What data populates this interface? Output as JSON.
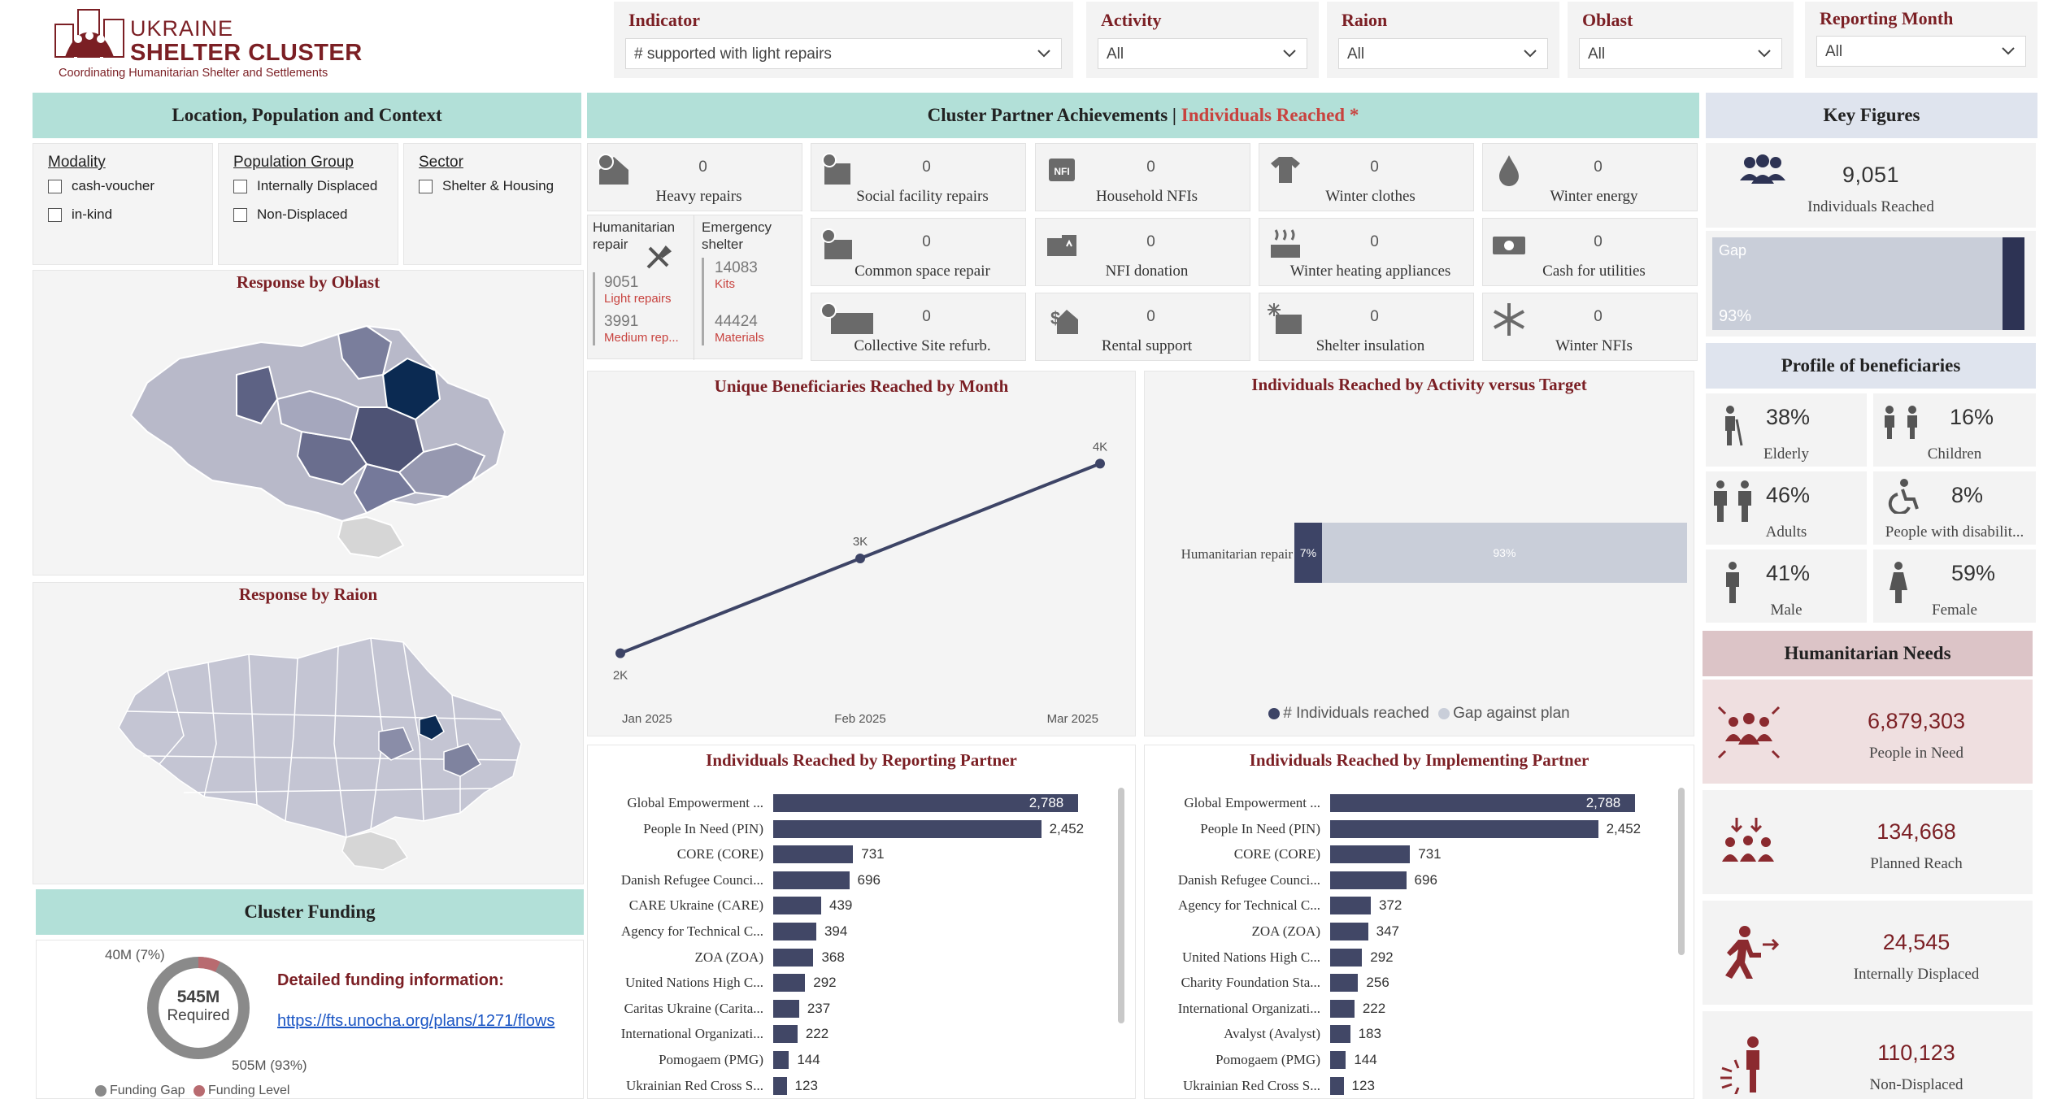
{
  "logo": {
    "line1": "UKRAINE",
    "line2": "SHELTER CLUSTER",
    "tagline": "Coordinating Humanitarian Shelter and Settlements"
  },
  "filters": [
    {
      "label": "Indicator",
      "value": "# supported with light repairs"
    },
    {
      "label": "Activity",
      "value": "All"
    },
    {
      "label": "Raion",
      "value": "All"
    },
    {
      "label": "Oblast",
      "value": "All"
    },
    {
      "label": "Reporting Month",
      "value": "All"
    }
  ],
  "left": {
    "header": "Location, Population and Context",
    "slicers": [
      {
        "title": "Modality",
        "options": [
          "cash-voucher",
          "in-kind"
        ]
      },
      {
        "title": "Population Group",
        "options": [
          "Internally Displaced",
          "Non-Displaced"
        ]
      },
      {
        "title": "Sector",
        "options": [
          "Shelter & Housing"
        ]
      }
    ],
    "map1_title": "Response by Oblast",
    "map2_title": "Response by Raion",
    "funding": {
      "header": "Cluster Funding",
      "donut_center_value": "545M",
      "donut_center_label": "Required",
      "label_level": "40M (7%)",
      "label_gap": "505M (93%)",
      "info_title": "Detailed funding information:",
      "link": "https://fts.unocha.org/plans/1271/flows",
      "legend_gap": "Funding Gap",
      "legend_level": "Funding Level",
      "gap_pct": 93,
      "level_pct": 7
    }
  },
  "center": {
    "header_main": "Cluster Partner Achievements | ",
    "header_accent": "Individuals Reached *",
    "tiles": [
      {
        "value": "0",
        "label": "Heavy repairs",
        "icon": "house-heavy-icon"
      },
      {
        "value": "0",
        "label": "Social facility repairs",
        "icon": "social-facility-icon"
      },
      {
        "value": "0",
        "label": "Household NFIs",
        "icon": "nfi-icon"
      },
      {
        "value": "0",
        "label": "Winter clothes",
        "icon": "shirt-icon"
      },
      {
        "value": "0",
        "label": "Winter energy",
        "icon": "drop-icon"
      },
      {
        "value": "0",
        "label": "Common space repair",
        "icon": "common-space-icon"
      },
      {
        "value": "0",
        "label": "NFI donation",
        "icon": "nfi-donation-icon"
      },
      {
        "value": "0",
        "label": "Winter heating appliances",
        "icon": "heating-icon"
      },
      {
        "value": "0",
        "label": "Cash for utilities",
        "icon": "cash-icon"
      },
      {
        "value": "0",
        "label": "Collective Site refurb.",
        "icon": "collective-site-icon"
      },
      {
        "value": "0",
        "label": "Rental support",
        "icon": "rental-icon"
      },
      {
        "value": "0",
        "label": "Shelter insulation",
        "icon": "insulation-icon"
      },
      {
        "value": "0",
        "label": "Winter NFIs",
        "icon": "snowflake-icon"
      }
    ],
    "hum_repair": {
      "title": "Humanitarian repair",
      "v1": "9051",
      "l1": "Light repairs",
      "v2": "3991",
      "l2": "Medium rep..."
    },
    "emergency": {
      "title": "Emergency shelter",
      "v1": "14083",
      "l1": "Kits",
      "v2": "44424",
      "l2": "Materials"
    }
  },
  "chart_data": [
    {
      "type": "line",
      "title": "Unique Beneficiaries Reached by Month",
      "categories": [
        "Jan 2025",
        "Feb 2025",
        "Mar 2025"
      ],
      "values": [
        2000,
        3000,
        4000
      ],
      "data_labels": [
        "2K",
        "3K",
        "4K"
      ],
      "ylim": [
        1800,
        4200
      ],
      "color": "#3d4466"
    },
    {
      "type": "bar",
      "title": "Individuals Reached by Activity versus Target",
      "categories": [
        "Humanitarian repair"
      ],
      "series": [
        {
          "name": "# Individuals reached",
          "values": [
            7
          ],
          "label": "7%",
          "color": "#3d4466"
        },
        {
          "name": "Gap against plan",
          "values": [
            93
          ],
          "label": "93%",
          "color": "#c9ced9"
        }
      ]
    },
    {
      "type": "bar",
      "title": "Individuals Reached by Reporting Partner",
      "categories": [
        "Global Empowerment ...",
        "People In Need (PIN)",
        "CORE (CORE)",
        "Danish Refugee Counci...",
        "CARE Ukraine (CARE)",
        "Agency for Technical C...",
        "ZOA (ZOA)",
        "United Nations High C...",
        "Caritas Ukraine (Carita...",
        "International Organizati...",
        "Pomogaem (PMG)",
        "Ukrainian Red Cross S..."
      ],
      "values": [
        2788,
        2452,
        731,
        696,
        439,
        394,
        368,
        292,
        237,
        222,
        144,
        123
      ],
      "data_labels": [
        "2,788",
        "2,452",
        "731",
        "696",
        "439",
        "394",
        "368",
        "292",
        "237",
        "222",
        "144",
        "123"
      ],
      "xlim": [
        0,
        3000
      ]
    },
    {
      "type": "bar",
      "title": "Individuals Reached by Implementing Partner",
      "categories": [
        "Global Empowerment ...",
        "People In Need (PIN)",
        "CORE (CORE)",
        "Danish Refugee Counci...",
        "Agency for Technical C...",
        "ZOA (ZOA)",
        "United Nations High C...",
        "Charity Foundation Sta...",
        "International Organizati...",
        "Avalyst (Avalyst)",
        "Pomogaem (PMG)",
        "Ukrainian Red Cross S..."
      ],
      "values": [
        2788,
        2452,
        731,
        696,
        372,
        347,
        292,
        256,
        222,
        183,
        144,
        123
      ],
      "data_labels": [
        "2,788",
        "2,452",
        "731",
        "696",
        "372",
        "347",
        "292",
        "256",
        "222",
        "183",
        "144",
        "123"
      ],
      "xlim": [
        0,
        3000
      ]
    }
  ],
  "right": {
    "key_header": "Key Figures",
    "individuals_value": "9,051",
    "individuals_label": "Individuals Reached",
    "gap_label": "Gap",
    "gap_pct_label": "93%",
    "gap_pct": 93,
    "profile_header": "Profile of beneficiaries",
    "profile": [
      {
        "value": "38%",
        "label": "Elderly",
        "icon": "elderly-icon"
      },
      {
        "value": "16%",
        "label": "Children",
        "icon": "children-icon"
      },
      {
        "value": "46%",
        "label": "Adults",
        "icon": "adults-icon"
      },
      {
        "value": "8%",
        "label": "People with disabilit...",
        "icon": "disability-icon"
      },
      {
        "value": "41%",
        "label": "Male",
        "icon": "male-icon"
      },
      {
        "value": "59%",
        "label": "Female",
        "icon": "female-icon"
      }
    ],
    "needs_header": "Humanitarian Needs",
    "needs": [
      {
        "value": "6,879,303",
        "label": "People in Need"
      },
      {
        "value": "134,668",
        "label": "Planned Reach"
      },
      {
        "value": "24,545",
        "label": "Internally Displaced"
      },
      {
        "value": "110,123",
        "label": "Non-Displaced"
      }
    ]
  },
  "colors": {
    "maroon": "#7b1f24",
    "teal_header": "#b2e0d8",
    "navy_bar": "#414766",
    "gap_gray": "#c9ced9"
  }
}
